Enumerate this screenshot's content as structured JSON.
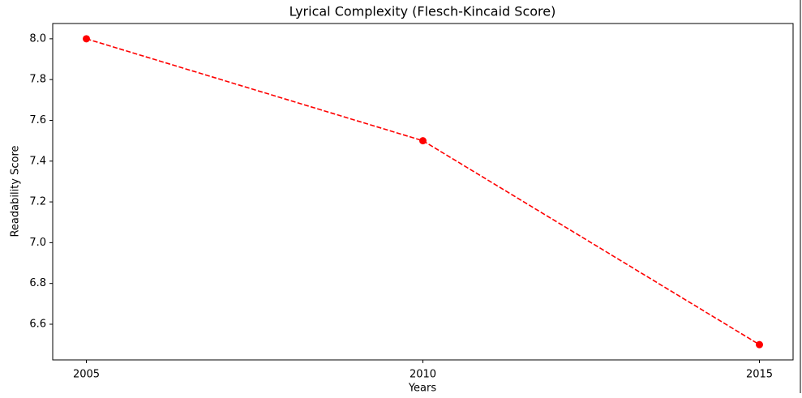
{
  "chart_data": {
    "type": "line",
    "title": "Lyrical Complexity (Flesch-Kincaid Score)",
    "xlabel": "Years",
    "ylabel": "Readability Score",
    "x": [
      2005,
      2010,
      2015
    ],
    "values": [
      8.0,
      7.5,
      6.5
    ],
    "color": "#ff0000",
    "linestyle": "dashed",
    "marker": "circle",
    "xlim": [
      2004.5,
      2015.5
    ],
    "xticks": [
      2005,
      2010,
      2015
    ],
    "ylim": [
      6.425,
      8.075
    ],
    "yticks": [
      6.6,
      6.8,
      {
        "value": 7,
        "label": "7.0"
      },
      7.2,
      7.4,
      7.6,
      7.8,
      {
        "value": 8,
        "label": "8.0"
      }
    ],
    "grid": false
  }
}
